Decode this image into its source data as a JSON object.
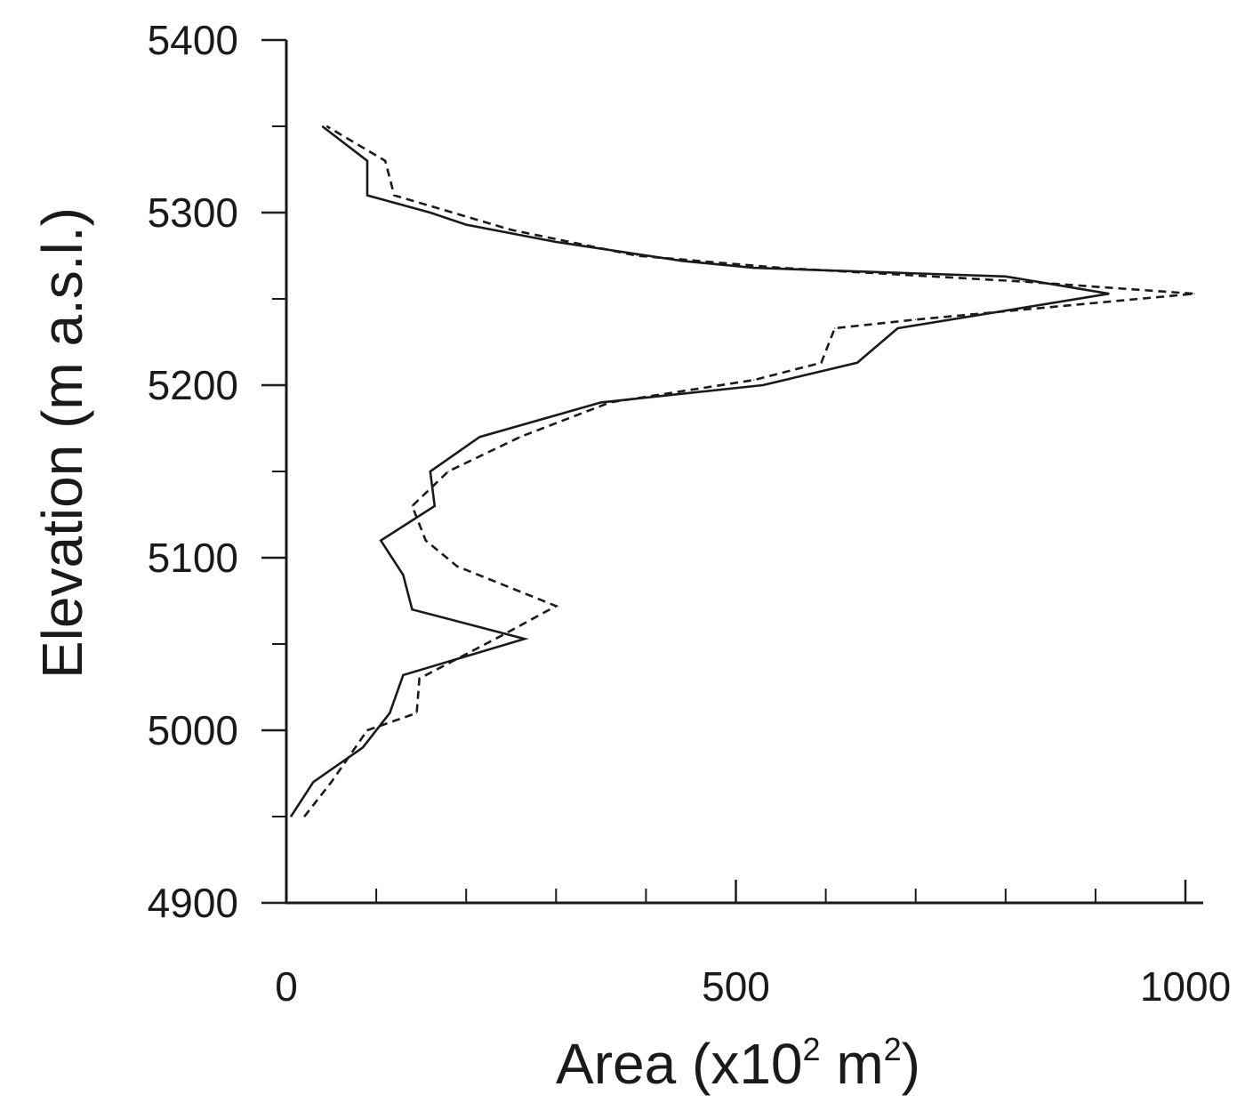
{
  "chart_data": {
    "type": "line",
    "orientation": "horizontal-profile",
    "title": "",
    "xlabel": {
      "base": "Area (x10",
      "sup1": "2",
      "mid": " m",
      "sup2": "2",
      "end": ")"
    },
    "ylabel": "Elevation (m a.s.l.)",
    "xlim": [
      0,
      1000
    ],
    "ylim": [
      4900,
      5400
    ],
    "x_major_ticks": [
      0,
      500,
      1000
    ],
    "x_major_tick_labels": [
      "0",
      "500",
      "1000"
    ],
    "x_minor_ticks": [
      100,
      200,
      300,
      400,
      600,
      700,
      800,
      900
    ],
    "y_major_ticks": [
      4900,
      5000,
      5100,
      5200,
      5300,
      5400
    ],
    "y_major_tick_labels": [
      "4900",
      "5000",
      "5100",
      "5200",
      "5300",
      "5400"
    ],
    "y_minor_ticks": [
      4950,
      5050,
      5150,
      5250,
      5350
    ],
    "grid": false,
    "legend": "none",
    "series": [
      {
        "style": "solid",
        "color": "#1a1a1a",
        "points": [
          [
            5,
            4950
          ],
          [
            30,
            4970
          ],
          [
            85,
            4990
          ],
          [
            115,
            5010
          ],
          [
            130,
            5032
          ],
          [
            265,
            5053
          ],
          [
            140,
            5070
          ],
          [
            130,
            5090
          ],
          [
            105,
            5110
          ],
          [
            165,
            5130
          ],
          [
            160,
            5150
          ],
          [
            215,
            5170
          ],
          [
            350,
            5190
          ],
          [
            530,
            5200
          ],
          [
            635,
            5213
          ],
          [
            680,
            5233
          ],
          [
            915,
            5253
          ],
          [
            800,
            5263
          ],
          [
            520,
            5268
          ],
          [
            440,
            5272
          ],
          [
            300,
            5283
          ],
          [
            200,
            5293
          ],
          [
            160,
            5300
          ],
          [
            90,
            5310
          ],
          [
            90,
            5330
          ],
          [
            40,
            5350
          ]
        ]
      },
      {
        "style": "dashed",
        "color": "#1a1a1a",
        "points": [
          [
            20,
            4950
          ],
          [
            50,
            4970
          ],
          [
            90,
            5000
          ],
          [
            145,
            5010
          ],
          [
            148,
            5030
          ],
          [
            240,
            5055
          ],
          [
            300,
            5072
          ],
          [
            190,
            5095
          ],
          [
            155,
            5110
          ],
          [
            140,
            5130
          ],
          [
            180,
            5150
          ],
          [
            260,
            5170
          ],
          [
            360,
            5190
          ],
          [
            520,
            5203
          ],
          [
            595,
            5213
          ],
          [
            610,
            5233
          ],
          [
            700,
            5238
          ],
          [
            1010,
            5253
          ],
          [
            820,
            5260
          ],
          [
            550,
            5268
          ],
          [
            390,
            5275
          ],
          [
            250,
            5290
          ],
          [
            120,
            5310
          ],
          [
            110,
            5330
          ],
          [
            45,
            5350
          ]
        ]
      }
    ]
  }
}
